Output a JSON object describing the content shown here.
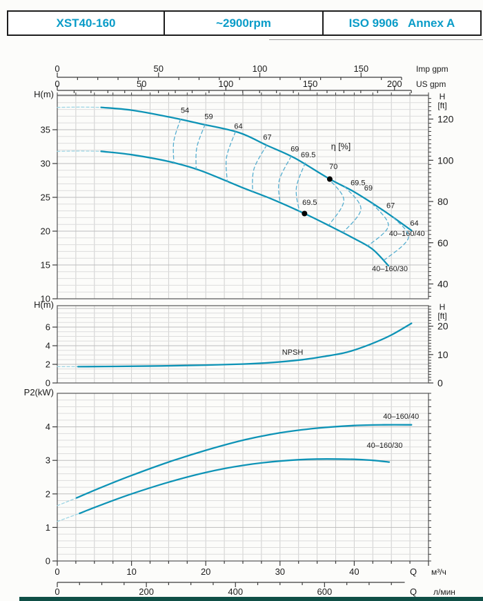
{
  "header": {
    "model": "XST40-160",
    "speed": "~2900rpm",
    "standard": "ISO 9906   Annex A"
  },
  "colors": {
    "header_text": "#0a9cc8",
    "curve": "#0d93b6",
    "curve_lead": "#9bd4e4",
    "contour": "#55aed0",
    "grid_minor": "#dcdcdc",
    "grid_major": "#bdbdbd",
    "grid_vert": "#cfcfcf",
    "frame": "#606060",
    "tick": "#3a3a3a",
    "dot": "#000000",
    "footer_bar": "#0f4f46"
  },
  "chart_data": {
    "type": "line",
    "flow_axis": {
      "q_max_m3h": 50,
      "imp_gpm": {
        "title": "Imp gpm",
        "labels": [
          0,
          50,
          100,
          150
        ],
        "minor_step": 10,
        "max": 170,
        "m3h_per_unit": 0.2728
      },
      "us_gpm": {
        "title": "US gpm",
        "labels": [
          0,
          50,
          100,
          150,
          200
        ],
        "minor_step": 10,
        "max": 210,
        "m3h_per_unit": 0.2271
      },
      "m3h": {
        "q": "Q",
        "title": "м³/ч",
        "labels": [
          0,
          10,
          20,
          30,
          40
        ],
        "minor_step": 2.5,
        "major_step": 10
      },
      "lmin": {
        "q": "Q",
        "title": "л/мин",
        "labels": [
          0,
          200,
          400,
          600
        ],
        "minor_step": 50,
        "max": 780,
        "m3h_per_unit": 0.06
      }
    },
    "panels": [
      {
        "id": "head",
        "ylabel": "H(m)",
        "right_unit": [
          "H",
          "[ft]"
        ],
        "ylim": [
          10,
          40.1
        ],
        "yticks": [
          10,
          15,
          20,
          25,
          30,
          35
        ],
        "grid_minor": 1,
        "grid_major": 5,
        "right_ft_labels": [
          40,
          60,
          80,
          100,
          120
        ],
        "right_ft_minor": 2,
        "series": [
          {
            "name": "40-160/40",
            "label_pos": [
              47.1,
              19.3
            ],
            "lead": [
              [
                0,
                38.3
              ],
              [
                3,
                38.35
              ],
              [
                5.9,
                38.3
              ]
            ],
            "points": [
              [
                5.9,
                38.3
              ],
              [
                10,
                37.9
              ],
              [
                15,
                36.9
              ],
              [
                19.2,
                35.9
              ],
              [
                24.4,
                34.6
              ],
              [
                28.2,
                32.7
              ],
              [
                32,
                30.8
              ],
              [
                36.7,
                27.7
              ],
              [
                40,
                25.8
              ],
              [
                44,
                23.0
              ],
              [
                47.7,
                20.1
              ]
            ]
          },
          {
            "name": "40-160/30",
            "label_pos": [
              44.8,
              14.1
            ],
            "lead": [
              [
                0,
                31.8
              ],
              [
                3,
                31.85
              ],
              [
                5.9,
                31.8
              ]
            ],
            "points": [
              [
                5.9,
                31.8
              ],
              [
                10,
                31.3
              ],
              [
                15,
                30.3
              ],
              [
                19.2,
                29.0
              ],
              [
                24.8,
                26.5
              ],
              [
                29,
                24.7
              ],
              [
                33.3,
                22.6
              ],
              [
                37,
                20.6
              ],
              [
                40,
                18.9
              ],
              [
                42.5,
                17.3
              ],
              [
                44.6,
                14.9
              ]
            ]
          }
        ],
        "efficiency": {
          "unit_label": "η [%]",
          "unit_pos": [
            38.2,
            32.1
          ],
          "contours": [
            {
              "label": "54",
              "label_pos": [
                17.2,
                37.5
              ],
              "path": [
                [
                  16.6,
                  36.55
                ],
                [
                  15.7,
                  33.3
                ],
                [
                  15.7,
                  30.15
                ]
              ]
            },
            {
              "label": "59",
              "label_pos": [
                20.4,
                36.6
              ],
              "path": [
                [
                  19.9,
                  35.75
                ],
                [
                  18.8,
                  32.4
                ],
                [
                  18.7,
                  29.2
                ]
              ]
            },
            {
              "label": "64",
              "label_pos": [
                24.4,
                35.15
              ],
              "path": [
                [
                  24.0,
                  34.7
                ],
                [
                  22.8,
                  30.9
                ],
                [
                  22.9,
                  27.35
                ]
              ]
            },
            {
              "label": "67",
              "label_pos": [
                28.3,
                33.5
              ],
              "path": [
                [
                  28.2,
                  32.7
                ],
                [
                  26.5,
                  29.2
                ],
                [
                  26.3,
                  25.75
                ]
              ]
            },
            {
              "label": "69",
              "label_pos": [
                32.0,
                31.8
              ],
              "path": [
                [
                  31.5,
                  31.05
                ],
                [
                  29.9,
                  27.5
                ],
                [
                  30.0,
                  24.2
                ]
              ]
            },
            {
              "label": "69.5",
              "label_pos": [
                33.8,
                30.9
              ],
              "path": [
                [
                  33.4,
                  30.1
                ],
                [
                  32.2,
                  26.4
                ],
                [
                  32.6,
                  22.95
                ]
              ]
            },
            {
              "label": "69.5",
              "label_pos": [
                40.5,
                26.8
              ],
              "path": [
                [
                  36.4,
                  27.9
                ],
                [
                  38.6,
                  24.6
                ],
                [
                  36.6,
                  20.9
                ]
              ]
            },
            {
              "label": "69",
              "label_pos": [
                41.9,
                26.0
              ],
              "path": [
                [
                  38.7,
                  26.6
                ],
                [
                  40.9,
                  23.3
                ],
                [
                  38.5,
                  19.8
                ]
              ]
            },
            {
              "label": "67",
              "label_pos": [
                44.9,
                23.4
              ],
              "path": [
                [
                  42.4,
                  24.1
                ],
                [
                  44.6,
                  20.8
                ],
                [
                  41.8,
                  17.8
                ]
              ]
            },
            {
              "label": "64",
              "label_pos": [
                48.1,
                20.8
              ],
              "path": [
                [
                  45.3,
                  22.0
                ],
                [
                  47.3,
                  19.0
                ],
                [
                  43.9,
                  15.6
                ]
              ]
            }
          ],
          "bep": [
            {
              "label": "70",
              "label_pos": [
                37.2,
                29.2
              ],
              "point": [
                36.7,
                27.7
              ]
            },
            {
              "label": "69.5",
              "label_pos": [
                34.0,
                23.9
              ],
              "point": [
                33.3,
                22.6
              ]
            }
          ]
        }
      },
      {
        "id": "npsh",
        "ylabel": "H(m)",
        "right_unit": [
          "H",
          "[ft]"
        ],
        "ylim": [
          0,
          8.3
        ],
        "yticks": [
          0,
          2,
          4,
          6
        ],
        "grid_minor": 0.5,
        "grid_major": 2,
        "right_ft_labels": [
          0,
          10,
          20
        ],
        "right_ft_minor": 1,
        "series": [
          {
            "name": "NPSH",
            "label_pos": [
              31.7,
              3.05
            ],
            "lead": [
              [
                0,
                1.75
              ],
              [
                2.8,
                1.75
              ]
            ],
            "points": [
              [
                2.8,
                1.75
              ],
              [
                8,
                1.78
              ],
              [
                14,
                1.83
              ],
              [
                20,
                1.92
              ],
              [
                25,
                2.03
              ],
              [
                29,
                2.2
              ],
              [
                33,
                2.5
              ],
              [
                36,
                2.85
              ],
              [
                39,
                3.3
              ],
              [
                42,
                4.1
              ],
              [
                45,
                5.15
              ],
              [
                47.7,
                6.4
              ]
            ]
          }
        ]
      },
      {
        "id": "power",
        "ylabel": "P2(kW)",
        "ylim": [
          0,
          5
        ],
        "yticks": [
          0,
          1,
          2,
          3,
          4
        ],
        "grid_minor": 0.2,
        "grid_major": 1,
        "right_minor": 0.2,
        "series": [
          {
            "name": "40-160/40",
            "label_pos": [
              46.3,
              4.24
            ],
            "lead": [
              [
                0,
                1.65
              ],
              [
                2.6,
                1.88
              ]
            ],
            "points": [
              [
                2.6,
                1.88
              ],
              [
                6,
                2.2
              ],
              [
                10,
                2.55
              ],
              [
                15,
                2.95
              ],
              [
                20,
                3.3
              ],
              [
                25,
                3.6
              ],
              [
                30,
                3.82
              ],
              [
                35,
                3.96
              ],
              [
                40,
                4.04
              ],
              [
                44,
                4.06
              ],
              [
                47.7,
                4.06
              ]
            ]
          },
          {
            "name": "40-160/30",
            "label_pos": [
              44.1,
              3.37
            ],
            "lead": [
              [
                0,
                1.18
              ],
              [
                3,
                1.42
              ]
            ],
            "points": [
              [
                3,
                1.42
              ],
              [
                6,
                1.68
              ],
              [
                10,
                2.0
              ],
              [
                15,
                2.35
              ],
              [
                20,
                2.64
              ],
              [
                25,
                2.85
              ],
              [
                30,
                2.98
              ],
              [
                35,
                3.04
              ],
              [
                40,
                3.03
              ],
              [
                42.5,
                3.0
              ],
              [
                44.7,
                2.95
              ]
            ]
          }
        ]
      }
    ]
  }
}
